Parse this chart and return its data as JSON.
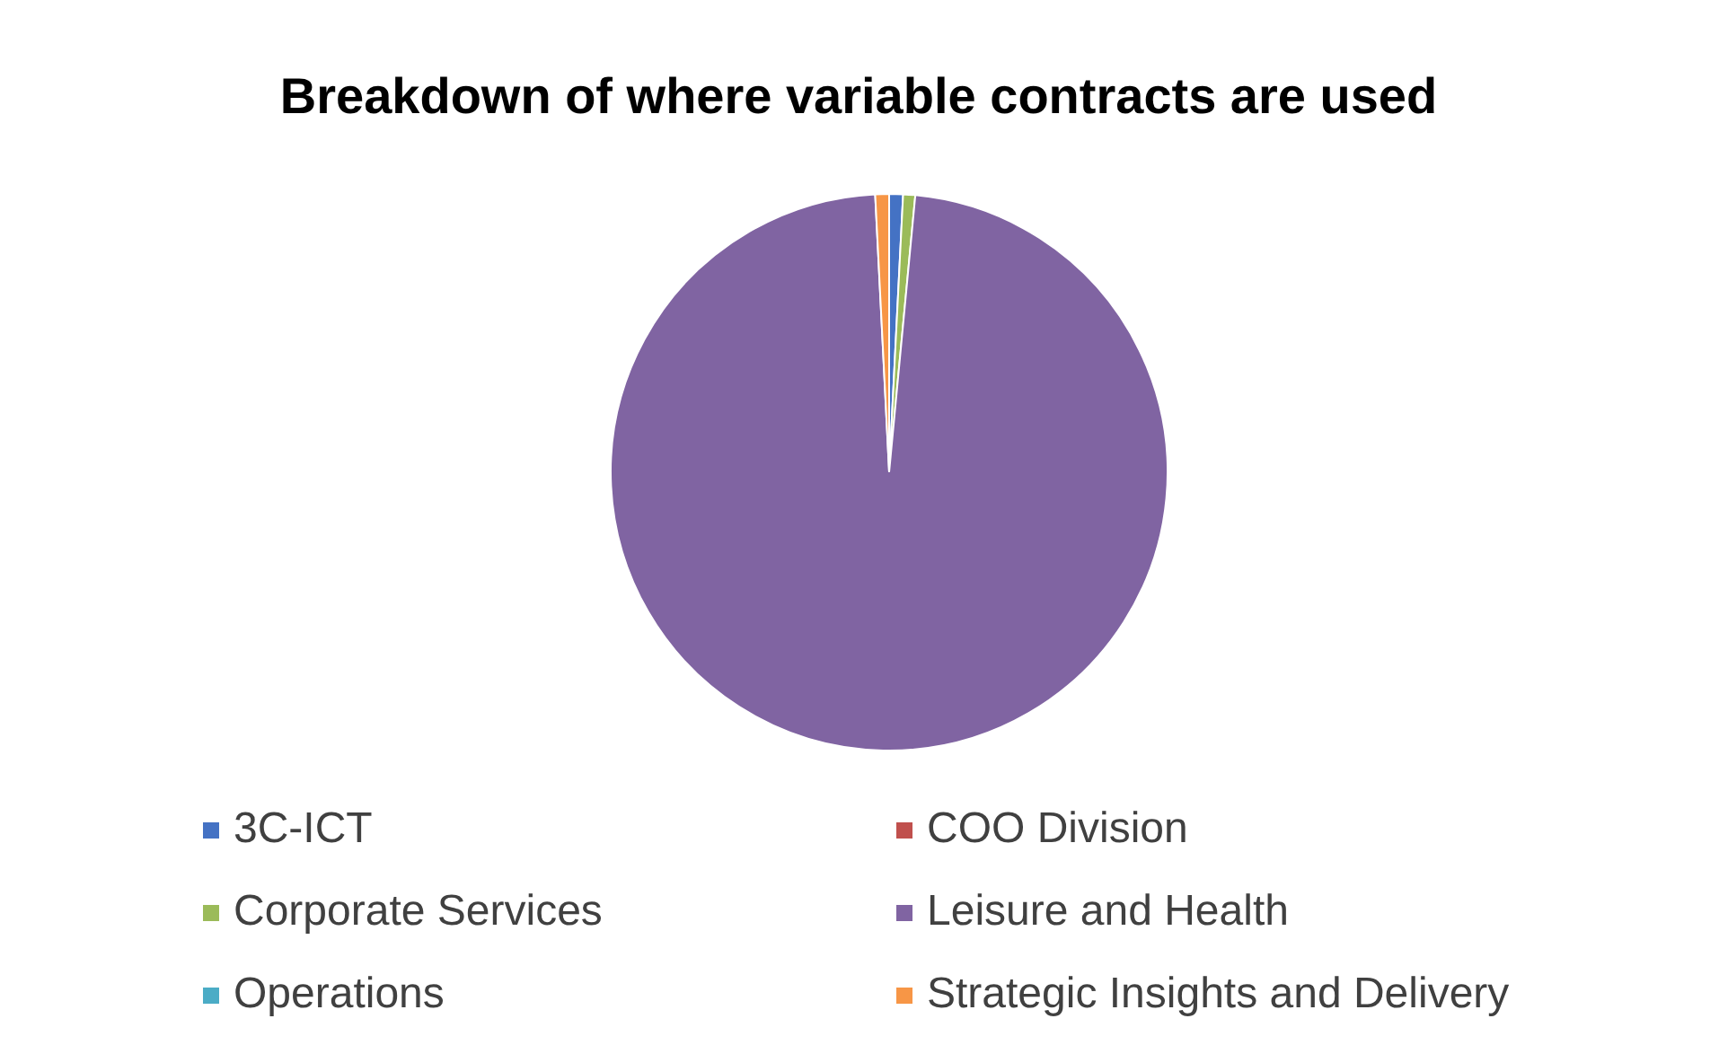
{
  "chart_data": {
    "type": "pie",
    "title": "Breakdown of where variable contracts are used",
    "categories": [
      "3C-ICT",
      "COO Division",
      "Corporate Services",
      "Leisure and Health",
      "Operations",
      "Strategic Insights and Delivery"
    ],
    "values": [
      0.8,
      null,
      0.7,
      97.7,
      null,
      0.8
    ],
    "colors": [
      "#4472c4",
      "#c0504d",
      "#9bbb59",
      "#8064a2",
      "#4bacc6",
      "#f79646"
    ],
    "legend": "bottom"
  }
}
